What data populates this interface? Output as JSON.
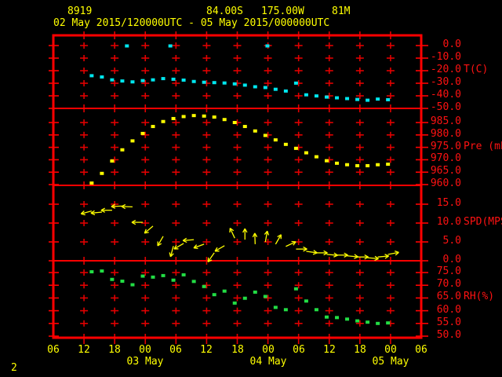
{
  "page_number": "2",
  "header": {
    "station_id": "8919",
    "latitude": "84.00S",
    "longitude": "175.00W",
    "elevation": "81M",
    "period": "02 May 2015/120000UTC - 05 May 2015/000000UTC"
  },
  "colors": {
    "background": "#000000",
    "frame": "#ff0000",
    "grid": "#e00000",
    "axis_text": "#ff1212",
    "header_text": "#ffff00",
    "temperature_series": "#00e6ee",
    "pressure_series": "#ffff00",
    "wind_series": "#ffff00",
    "humidity_series": "#22dd44"
  },
  "x_axis": {
    "hour_labels": [
      "06",
      "12",
      "18",
      "00",
      "06",
      "12",
      "18",
      "00",
      "06",
      "12",
      "18",
      "00",
      "06"
    ],
    "date_labels": [
      {
        "hour": 18,
        "label": "03 May"
      },
      {
        "hour": 42,
        "label": "04 May"
      },
      {
        "hour": 66,
        "label": "05 May"
      }
    ]
  },
  "chart_data": {
    "type": "scatter",
    "title_lines": [
      "8919    84.00S  175.00W   81M",
      "02 May 2015/120000UTC - 05 May 2015/000000UTC"
    ],
    "x_axis_note": "time, ticks every 6 hours from 06UTC 02 May to 06UTC 05 May; series start at 12UTC 02 May",
    "panels": [
      {
        "name": "temperature",
        "unit": "T(C)",
        "unit_anchor": -20,
        "ylim": [
          -50,
          0
        ],
        "ticks": [
          {
            "v": 0,
            "label": "0.0"
          },
          {
            "v": -10,
            "label": "-10.0"
          },
          {
            "v": -20,
            "label": "-20.0"
          },
          {
            "v": -30,
            "label": "-30.0"
          },
          {
            "v": -40,
            "label": "-40.0"
          },
          {
            "v": -50,
            "label": "-50.0"
          }
        ]
      },
      {
        "name": "pressure",
        "unit": "Pre (mb)",
        "unit_anchor": 975,
        "ylim": [
          960,
          985
        ],
        "ticks": [
          {
            "v": 985,
            "label": "985.0"
          },
          {
            "v": 980,
            "label": "980.0"
          },
          {
            "v": 975,
            "label": "975.0"
          },
          {
            "v": 970,
            "label": "970.0"
          },
          {
            "v": 965,
            "label": "965.0"
          },
          {
            "v": 960,
            "label": "960.0"
          }
        ]
      },
      {
        "name": "wind",
        "unit": "SPD(MPS)",
        "unit_anchor": 10,
        "ylim": [
          0,
          15
        ],
        "ticks": [
          {
            "v": 15,
            "label": "15.0"
          },
          {
            "v": 10,
            "label": "10.0"
          },
          {
            "v": 5,
            "label": "5.0"
          },
          {
            "v": 0,
            "label": "0.0"
          }
        ]
      },
      {
        "name": "humidity",
        "unit": "RH(%)",
        "unit_anchor": 65,
        "ylim": [
          50,
          75
        ],
        "ticks": [
          {
            "v": 75,
            "label": "75.0"
          },
          {
            "v": 70,
            "label": "70.0"
          },
          {
            "v": 65,
            "label": "65.0"
          },
          {
            "v": 60,
            "label": "60.0"
          },
          {
            "v": 55,
            "label": "55.0"
          },
          {
            "v": 50,
            "label": "50.0"
          }
        ]
      }
    ],
    "series": {
      "temperature": {
        "units": "C",
        "points": [
          [
            1.5,
            -24.0
          ],
          [
            3.5,
            -25.0
          ],
          [
            5.5,
            -27.3
          ],
          [
            7.5,
            -28.2
          ],
          [
            9.5,
            -28.9
          ],
          [
            11.5,
            -27.9
          ],
          [
            13.5,
            -27.3
          ],
          [
            15.5,
            -26.3
          ],
          [
            17.5,
            -26.8
          ],
          [
            19.5,
            -27.5
          ],
          [
            21.5,
            -28.6
          ],
          [
            23.5,
            -29.2
          ],
          [
            25.5,
            -29.5
          ],
          [
            27.5,
            -29.8
          ],
          [
            29.5,
            -30.5
          ],
          [
            31.5,
            -31.5
          ],
          [
            33.5,
            -32.8
          ],
          [
            35.5,
            -33.4
          ],
          [
            37.5,
            -34.8
          ],
          [
            39.5,
            -36.2
          ],
          [
            41.5,
            -29.9
          ],
          [
            43.5,
            -39.2
          ],
          [
            45.5,
            -40.1
          ],
          [
            47.5,
            -41.0
          ],
          [
            49.5,
            -41.6
          ],
          [
            51.5,
            -42.2
          ],
          [
            53.5,
            -42.9
          ],
          [
            55.5,
            -43.5
          ],
          [
            57.5,
            -42.6
          ],
          [
            59.5,
            -43.1
          ]
        ],
        "outliers": [
          [
            8.4,
            -0.3
          ],
          [
            16.9,
            -0.3
          ],
          [
            35.9,
            -0.3
          ]
        ]
      },
      "pressure": {
        "units": "mb",
        "points": [
          [
            1.5,
            960.6
          ],
          [
            3.5,
            964.5
          ],
          [
            5.5,
            969.5
          ],
          [
            7.5,
            974.0
          ],
          [
            9.5,
            977.6
          ],
          [
            11.5,
            980.6
          ],
          [
            13.5,
            983.4
          ],
          [
            15.5,
            985.4
          ],
          [
            17.5,
            986.6
          ],
          [
            19.5,
            987.4
          ],
          [
            21.5,
            987.8
          ],
          [
            23.5,
            987.6
          ],
          [
            25.5,
            987.2
          ],
          [
            27.5,
            986.2
          ],
          [
            29.5,
            985.0
          ],
          [
            31.5,
            983.4
          ],
          [
            33.5,
            981.6
          ],
          [
            35.5,
            979.8
          ],
          [
            37.5,
            978.0
          ],
          [
            39.5,
            976.2
          ],
          [
            41.5,
            974.6
          ],
          [
            43.5,
            972.8
          ],
          [
            45.5,
            971.2
          ],
          [
            47.5,
            969.6
          ],
          [
            49.5,
            968.6
          ],
          [
            51.5,
            968.0
          ],
          [
            53.5,
            967.6
          ],
          [
            55.5,
            967.6
          ],
          [
            57.5,
            968.0
          ],
          [
            59.5,
            968.2
          ]
        ]
      },
      "wind": {
        "units": "MPS",
        "dir_convention": "degrees, 0 = pointing right/east, 90 = pointing up",
        "points": [
          [
            1.5,
            13.2,
            195
          ],
          [
            3.5,
            12.9,
            185
          ],
          [
            5.5,
            13.4,
            180
          ],
          [
            7.5,
            14.5,
            182
          ],
          [
            9.5,
            14.3,
            178
          ],
          [
            11.5,
            10.2,
            180
          ],
          [
            13.5,
            9.2,
            220
          ],
          [
            15.5,
            6.5,
            240
          ],
          [
            17.5,
            3.9,
            255
          ],
          [
            19.5,
            4.6,
            210
          ],
          [
            21.5,
            5.6,
            185
          ],
          [
            23.5,
            4.4,
            200
          ],
          [
            25.5,
            2.1,
            235
          ],
          [
            27.5,
            4.0,
            210
          ],
          [
            29.5,
            6.0,
            115
          ],
          [
            31.5,
            5.6,
            90
          ],
          [
            33.5,
            4.4,
            92
          ],
          [
            35.5,
            5.0,
            80
          ],
          [
            37.5,
            4.4,
            60
          ],
          [
            39.5,
            3.8,
            25
          ],
          [
            41.5,
            3.1,
            0
          ],
          [
            43.5,
            2.5,
            -8
          ],
          [
            45.5,
            2.1,
            0
          ],
          [
            47.5,
            1.7,
            -5
          ],
          [
            49.5,
            1.5,
            0
          ],
          [
            51.5,
            1.3,
            -5
          ],
          [
            53.5,
            1.0,
            0
          ],
          [
            55.5,
            0.8,
            -5
          ],
          [
            57.5,
            1.0,
            5
          ],
          [
            59.5,
            1.7,
            10
          ]
        ]
      },
      "humidity": {
        "units": "%",
        "points": [
          [
            1.5,
            75.3
          ],
          [
            3.5,
            75.6
          ],
          [
            5.5,
            72.3
          ],
          [
            7.5,
            71.6
          ],
          [
            9.5,
            70.2
          ],
          [
            11.5,
            73.6
          ],
          [
            13.5,
            73.2
          ],
          [
            15.5,
            73.8
          ],
          [
            17.5,
            72.0
          ],
          [
            19.5,
            74.1
          ],
          [
            21.5,
            71.5
          ],
          [
            23.5,
            69.5
          ],
          [
            25.5,
            66.3
          ],
          [
            27.5,
            67.7
          ],
          [
            29.5,
            63.0
          ],
          [
            31.5,
            64.9
          ],
          [
            33.5,
            67.3
          ],
          [
            35.5,
            65.6
          ],
          [
            37.5,
            61.3
          ],
          [
            39.5,
            60.4
          ],
          [
            41.5,
            68.6
          ],
          [
            43.5,
            63.8
          ],
          [
            45.5,
            60.4
          ],
          [
            47.5,
            57.5
          ],
          [
            49.5,
            57.3
          ],
          [
            51.5,
            56.7
          ],
          [
            53.5,
            56.0
          ],
          [
            55.5,
            55.5
          ],
          [
            57.5,
            55.0
          ],
          [
            59.5,
            55.2
          ]
        ]
      }
    }
  }
}
